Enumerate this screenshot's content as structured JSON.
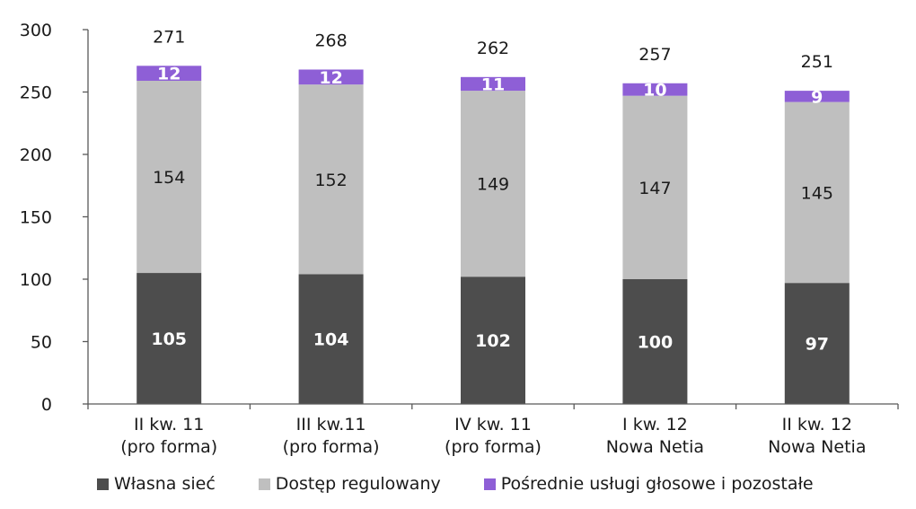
{
  "chart_data": {
    "type": "bar",
    "stacked": true,
    "categories": [
      [
        "II kw. 11",
        "(pro forma)"
      ],
      [
        "III kw.11",
        "(pro forma)"
      ],
      [
        "IV kw. 11",
        "(pro forma)"
      ],
      [
        "I kw. 12",
        "Nowa Netia"
      ],
      [
        "II kw. 12",
        "Nowa Netia"
      ]
    ],
    "series": [
      {
        "name": "Własna sieć",
        "values": [
          105,
          104,
          102,
          100,
          97
        ],
        "color": "#4d4d4d",
        "label_color": "#ffffff"
      },
      {
        "name": "Dostęp regulowany",
        "values": [
          154,
          152,
          149,
          147,
          145
        ],
        "color": "#bfbfbf",
        "label_color": "#1a1a1a"
      },
      {
        "name": "Pośrednie usługi głosowe i pozostałe",
        "values": [
          12,
          12,
          11,
          10,
          9
        ],
        "color": "#8e5fd6",
        "label_color": "#ffffff"
      }
    ],
    "totals": [
      271,
      268,
      262,
      257,
      251
    ],
    "ylim": [
      0,
      300
    ],
    "yticks": [
      0,
      50,
      100,
      150,
      200,
      250,
      300
    ],
    "grid": false,
    "legend_position": "bottom"
  }
}
